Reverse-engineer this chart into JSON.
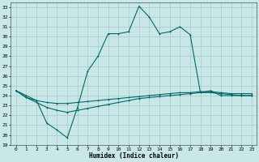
{
  "xlabel": "Humidex (Indice chaleur)",
  "bg_color": "#c8e8e8",
  "grid_color": "#a8c8c8",
  "line_color": "#006868",
  "xlim": [
    -0.5,
    23.5
  ],
  "ylim": [
    19,
    33.5
  ],
  "xticks": [
    0,
    1,
    2,
    3,
    4,
    5,
    6,
    7,
    8,
    9,
    10,
    11,
    12,
    13,
    14,
    15,
    16,
    17,
    18,
    19,
    20,
    21,
    22,
    23
  ],
  "yticks": [
    19,
    20,
    21,
    22,
    23,
    24,
    25,
    26,
    27,
    28,
    29,
    30,
    31,
    32,
    33
  ],
  "curve1_x": [
    0,
    1,
    2,
    3,
    4,
    5,
    6,
    7,
    8,
    9,
    10,
    11,
    12,
    13,
    14,
    15,
    16,
    17,
    18,
    19,
    20,
    21,
    22,
    23
  ],
  "curve1_y": [
    24.5,
    24.0,
    23.5,
    21.2,
    20.5,
    19.7,
    22.8,
    26.5,
    28.0,
    30.3,
    30.3,
    30.5,
    33.1,
    32.0,
    30.3,
    30.5,
    31.0,
    30.2,
    24.3,
    24.5,
    24.0,
    24.0,
    24.0,
    24.0
  ],
  "curve2_x": [
    0,
    1,
    2,
    3,
    4,
    5,
    6,
    7,
    8,
    9,
    10,
    11,
    12,
    13,
    14,
    15,
    16,
    17,
    18,
    19,
    20,
    21,
    22,
    23
  ],
  "curve2_y": [
    24.5,
    23.8,
    23.5,
    23.3,
    23.2,
    23.2,
    23.3,
    23.4,
    23.5,
    23.6,
    23.7,
    23.8,
    23.9,
    24.0,
    24.1,
    24.2,
    24.3,
    24.3,
    24.4,
    24.4,
    24.3,
    24.2,
    24.2,
    24.2
  ],
  "curve3_x": [
    0,
    1,
    2,
    3,
    4,
    5,
    6,
    7,
    8,
    9,
    10,
    11,
    12,
    13,
    14,
    15,
    16,
    17,
    18,
    19,
    20,
    21,
    22,
    23
  ],
  "curve3_y": [
    24.5,
    23.8,
    23.3,
    22.8,
    22.5,
    22.3,
    22.5,
    22.7,
    22.9,
    23.1,
    23.3,
    23.5,
    23.7,
    23.8,
    23.9,
    24.0,
    24.1,
    24.2,
    24.3,
    24.3,
    24.2,
    24.1,
    24.0,
    24.0
  ]
}
